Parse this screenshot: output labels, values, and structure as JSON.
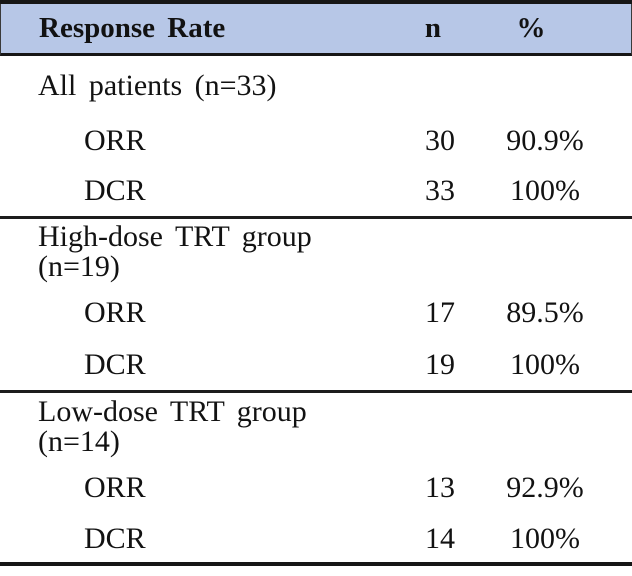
{
  "table": {
    "header": {
      "label": "Response Rate",
      "n": "n",
      "pct": "%"
    },
    "sections": [
      {
        "group": "All patients (n=33)",
        "rows": [
          {
            "label": "ORR",
            "n": "30",
            "pct": "90.9%"
          },
          {
            "label": "DCR",
            "n": "33",
            "pct": "100%"
          }
        ]
      },
      {
        "group": "High-dose TRT group (n=19)",
        "rows": [
          {
            "label": "ORR",
            "n": "17",
            "pct": "89.5%"
          },
          {
            "label": "DCR",
            "n": "19",
            "pct": "100%"
          }
        ]
      },
      {
        "group": "Low-dose TRT group (n=14)",
        "rows": [
          {
            "label": "ORR",
            "n": "13",
            "pct": "92.9%"
          },
          {
            "label": "DCR",
            "n": "14",
            "pct": "100%"
          }
        ]
      }
    ]
  },
  "colors": {
    "header_bg": "#b7c7e7",
    "border": "#161616",
    "text": "#121212"
  },
  "chart_data": {
    "type": "table",
    "title": "Response Rate",
    "columns": [
      "Response Rate",
      "n",
      "%"
    ],
    "rows": [
      [
        "All patients (n=33)",
        "",
        ""
      ],
      [
        "ORR",
        "30",
        "90.9%"
      ],
      [
        "DCR",
        "33",
        "100%"
      ],
      [
        "High-dose TRT group (n=19)",
        "",
        ""
      ],
      [
        "ORR",
        "17",
        "89.5%"
      ],
      [
        "DCR",
        "19",
        "100%"
      ],
      [
        "Low-dose TRT group (n=14)",
        "",
        ""
      ],
      [
        "ORR",
        "13",
        "92.9%"
      ],
      [
        "DCR",
        "14",
        "100%"
      ]
    ]
  }
}
